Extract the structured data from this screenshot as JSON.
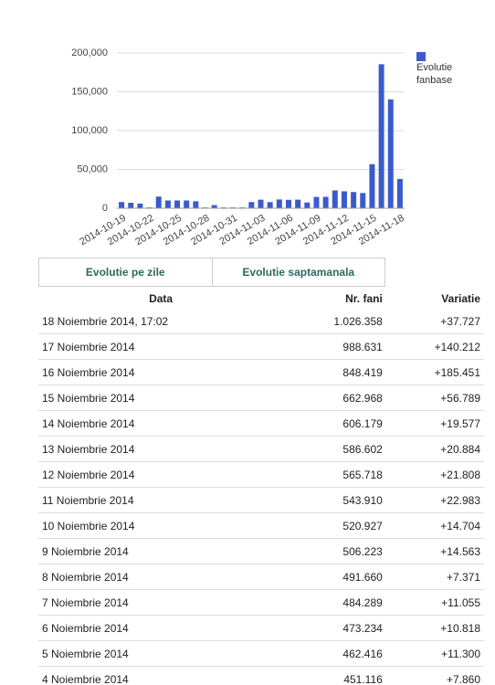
{
  "chart_data": {
    "type": "bar",
    "categories": [
      "2014-10-19",
      null,
      null,
      "2014-10-22",
      null,
      null,
      "2014-10-25",
      null,
      null,
      "2014-10-28",
      null,
      null,
      "2014-10-31",
      null,
      null,
      "2014-11-03",
      null,
      null,
      "2014-11-06",
      null,
      null,
      "2014-11-09",
      null,
      null,
      "2014-11-12",
      null,
      null,
      "2014-11-15",
      null,
      null,
      "2014-11-18"
    ],
    "series": [
      {
        "name": "Evolutie fanbase",
        "color": "#3b5bcc",
        "values": [
          8000,
          7000,
          6000,
          1000,
          15000,
          10000,
          10000,
          10000,
          9000,
          1000,
          4000,
          1000,
          1000,
          1000,
          8000,
          11000,
          7860,
          11300,
          10818,
          11055,
          7371,
          14563,
          14704,
          22983,
          21808,
          20884,
          19577,
          56789,
          185451,
          140212,
          37727
        ]
      }
    ],
    "ylim": [
      0,
      200000
    ],
    "yticks": [
      0,
      {
        "value": 50000,
        "label": "50,000"
      },
      {
        "value": 100000,
        "label": "100,000"
      },
      {
        "value": 150000,
        "label": "150,000"
      },
      {
        "value": 200000,
        "label": "200,000"
      }
    ],
    "grid": true,
    "legend": "right"
  },
  "tabs": [
    "Evolutie pe zile",
    "Evolutie saptamanala"
  ],
  "table": {
    "header": [
      "Data",
      "Nr. fani",
      "Variatie"
    ],
    "rows": [
      [
        "18 Noiembrie 2014, 17:02",
        "1.026.358",
        "+37.727"
      ],
      [
        "17 Noiembrie 2014",
        "988.631",
        "+140.212"
      ],
      [
        "16 Noiembrie 2014",
        "848.419",
        "+185.451"
      ],
      [
        "15 Noiembrie 2014",
        "662.968",
        "+56.789"
      ],
      [
        "14 Noiembrie 2014",
        "606.179",
        "+19.577"
      ],
      [
        "13 Noiembrie 2014",
        "586.602",
        "+20.884"
      ],
      [
        "12 Noiembrie 2014",
        "565.718",
        "+21.808"
      ],
      [
        "11 Noiembrie 2014",
        "543.910",
        "+22.983"
      ],
      [
        "10 Noiembrie 2014",
        "520.927",
        "+14.704"
      ],
      [
        "9 Noiembrie 2014",
        "506.223",
        "+14.563"
      ],
      [
        "8 Noiembrie 2014",
        "491.660",
        "+7.371"
      ],
      [
        "7 Noiembrie 2014",
        "484.289",
        "+11.055"
      ],
      [
        "6 Noiembrie 2014",
        "473.234",
        "+10.818"
      ],
      [
        "5 Noiembrie 2014",
        "462.416",
        "+11.300"
      ],
      [
        "4 Noiembrie 2014",
        "451.116",
        "+7.860"
      ]
    ]
  }
}
